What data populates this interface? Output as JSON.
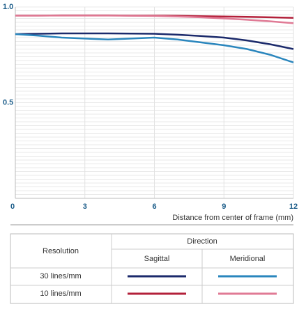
{
  "chart_data": {
    "type": "line",
    "x_label": "Distance from center of frame (mm)",
    "x": [
      0,
      1,
      2,
      3,
      4,
      5,
      6,
      7,
      8,
      9,
      10,
      11,
      12
    ],
    "xlim": [
      0,
      12
    ],
    "xticks": [
      0,
      3,
      6,
      9,
      12
    ],
    "ylim": [
      0,
      1
    ],
    "yticks": [
      0.5,
      {
        "value": 1.0,
        "label": "1.0"
      }
    ],
    "y_minor_ticks": [
      0.02,
      0.04,
      0.06,
      0.08,
      0.1,
      0.12,
      0.14,
      0.16,
      0.18,
      0.2,
      0.22,
      0.24,
      0.26,
      0.28,
      0.3,
      0.32,
      0.34,
      0.36,
      0.38,
      0.4,
      0.42,
      0.44,
      0.46,
      0.48,
      0.5,
      0.52,
      0.54,
      0.56,
      0.58,
      0.6,
      0.62,
      0.64,
      0.66,
      0.68,
      0.7,
      0.72,
      0.74,
      0.76,
      0.78,
      0.8,
      0.82,
      0.84,
      0.86,
      0.88,
      0.9,
      0.92,
      0.94,
      0.96,
      0.98,
      1.0
    ],
    "grid": true,
    "series": [
      {
        "color": "#1b2a6b",
        "values": [
          0.858,
          0.86,
          0.862,
          0.862,
          0.862,
          0.861,
          0.86,
          0.855,
          0.848,
          0.84,
          0.825,
          0.805,
          0.78
        ]
      },
      {
        "color": "#2a86bd",
        "values": [
          0.858,
          0.85,
          0.84,
          0.835,
          0.83,
          0.835,
          0.84,
          0.83,
          0.815,
          0.8,
          0.78,
          0.75,
          0.71
        ]
      },
      {
        "color": "#b3203a",
        "values": [
          0.955,
          0.955,
          0.956,
          0.956,
          0.956,
          0.955,
          0.955,
          0.954,
          0.952,
          0.95,
          0.948,
          0.946,
          0.943
        ]
      },
      {
        "color": "#e07a95",
        "values": [
          0.955,
          0.955,
          0.955,
          0.955,
          0.955,
          0.954,
          0.953,
          0.95,
          0.946,
          0.94,
          0.933,
          0.925,
          0.915
        ]
      }
    ],
    "legend": {
      "row_header": "Resolution",
      "column_header": "Direction",
      "columns": [
        "Sagittal",
        "Meridional"
      ],
      "rows": [
        "30 lines/mm",
        "10 lines/mm"
      ]
    }
  }
}
